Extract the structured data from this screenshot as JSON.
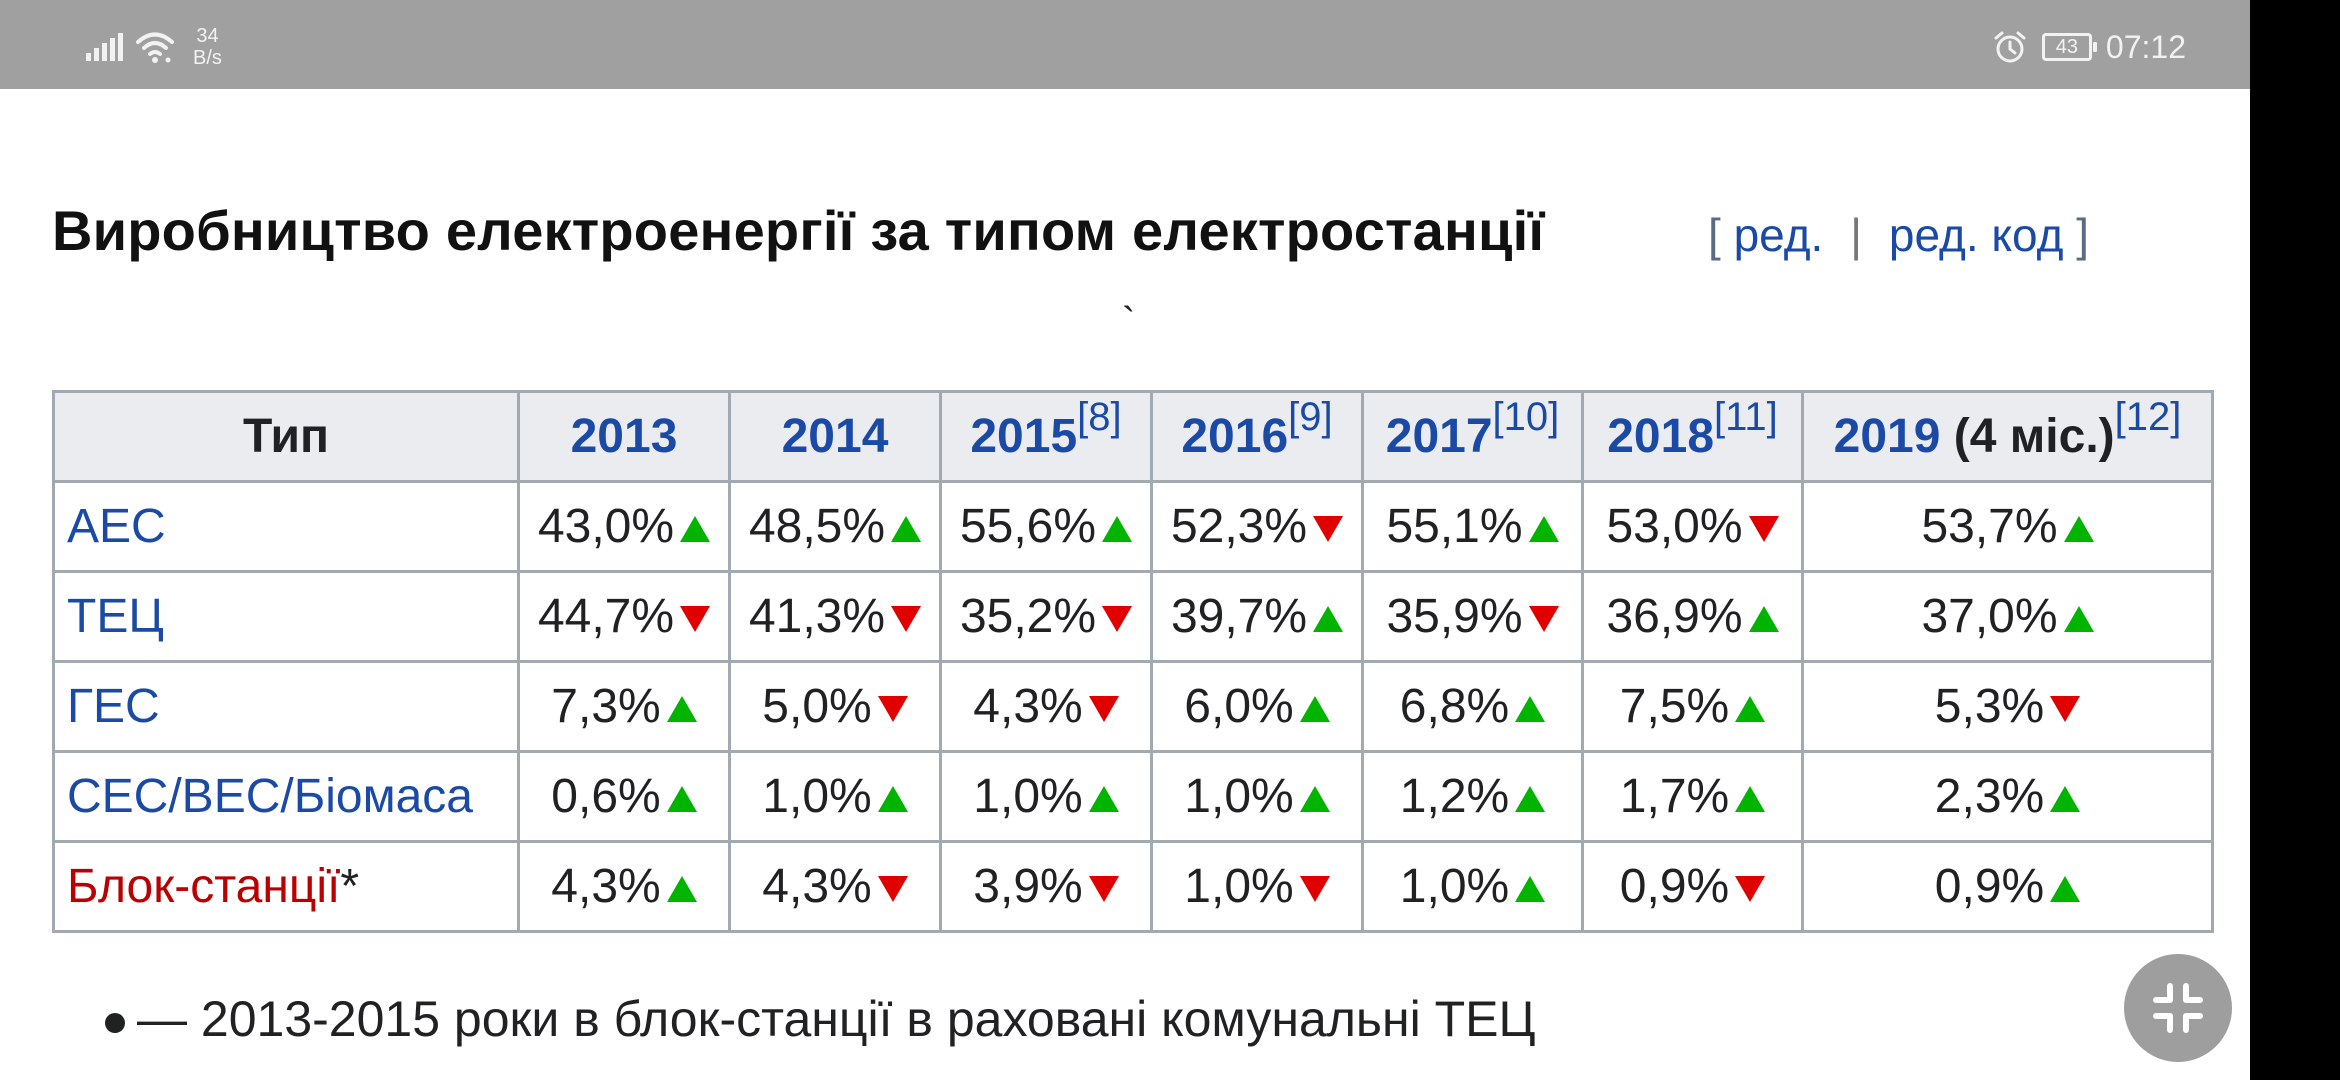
{
  "status_bar": {
    "net_speed_value": "34",
    "net_speed_unit": "B/s",
    "battery": "43",
    "time": "07:12",
    "icons": [
      "signal-icon",
      "wifi-icon",
      "alarm-icon",
      "battery-icon"
    ]
  },
  "section": {
    "title": "Виробництво електроенергії за типом електростанції",
    "edit_open": "[",
    "edit_link": "ред.",
    "edit_sep": "|",
    "edit_code_link": "ред. код",
    "edit_close": "]",
    "stray_mark": "`"
  },
  "table": {
    "head": {
      "type": "Тип",
      "y2013": "2013",
      "y2014": "2014",
      "y2015": "2015",
      "ref2015": "[8]",
      "y2016": "2016",
      "ref2016": "[9]",
      "y2017": "2017",
      "ref2017": "[10]",
      "y2018": "2018",
      "ref2018": "[11]",
      "y2019": "2019",
      "y2019_note": "(4 міс.)",
      "ref2019": "[12]"
    },
    "rows": [
      {
        "name": "АЕС",
        "values": [
          "43,0%",
          "48,5%",
          "55,6%",
          "52,3%",
          "55,1%",
          "53,0%",
          "53,7%"
        ],
        "trend": [
          "up",
          "up",
          "up",
          "down",
          "up",
          "down",
          "up"
        ]
      },
      {
        "name": "ТЕЦ",
        "values": [
          "44,7%",
          "41,3%",
          "35,2%",
          "39,7%",
          "35,9%",
          "36,9%",
          "37,0%"
        ],
        "trend": [
          "down",
          "down",
          "down",
          "up",
          "down",
          "up",
          "up"
        ]
      },
      {
        "name": "ГЕС",
        "values": [
          "7,3%",
          "5,0%",
          "4,3%",
          "6,0%",
          "6,8%",
          "7,5%",
          "5,3%"
        ],
        "trend": [
          "up",
          "down",
          "down",
          "up",
          "up",
          "up",
          "down"
        ]
      },
      {
        "name": "СЕС/ВЕС/Біомаса",
        "values": [
          "0,6%",
          "1,0%",
          "1,0%",
          "1,0%",
          "1,2%",
          "1,7%",
          "2,3%"
        ],
        "trend": [
          "up",
          "up",
          "up",
          "up",
          "up",
          "up",
          "up"
        ]
      },
      {
        "name": "Блок-станції",
        "name_suffix": "*",
        "values": [
          "4,3%",
          "4,3%",
          "3,9%",
          "1,0%",
          "1,0%",
          "0,9%",
          "0,9%"
        ],
        "trend": [
          "up",
          "down",
          "down",
          "down",
          "up",
          "down",
          "up"
        ]
      }
    ]
  },
  "footnote": "— 2013-2015 роки в блок-станції в раховані комунальні ТЕЦ",
  "colors": {
    "link": "#1a4aa6",
    "redlink": "#ba0000",
    "up": "#00b400",
    "down": "#e00000",
    "header_bg": "#eaecf0",
    "border": "#a2a9b1"
  },
  "fab_icon": "exit-fullscreen-icon"
}
